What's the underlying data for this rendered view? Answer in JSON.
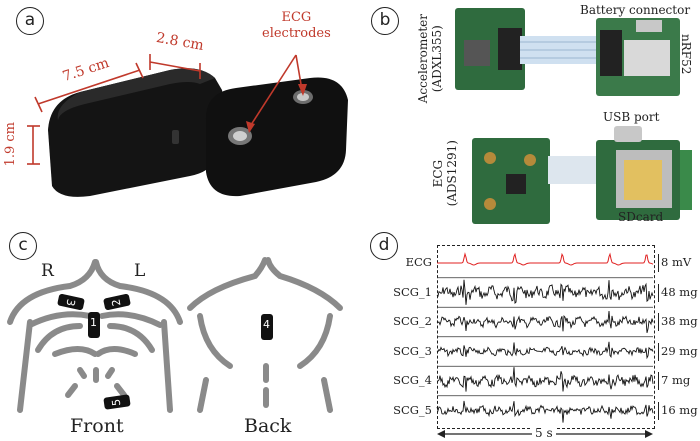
{
  "panels": {
    "a": "a",
    "b": "b",
    "c": "c",
    "d": "d"
  },
  "panel_a": {
    "ecg_electrodes": "ECG\nelectrodes",
    "dim_length": "7.5 cm",
    "dim_width": "2.8 cm",
    "dim_height": "1.9 cm",
    "accent_color": "#c0392b"
  },
  "panel_b": {
    "accelerometer": "Accelerometer\n(ADXL355)",
    "battery_connector": "Battery connector",
    "nrf52": "nRF52",
    "usb_port": "USB port",
    "ecg_chip": "ECG\n(ADS1291)",
    "sdcard": "SDcard"
  },
  "panel_c": {
    "right": "R",
    "left": "L",
    "front": "Front",
    "back": "Back",
    "positions": [
      "1",
      "2",
      "3",
      "4",
      "5"
    ]
  },
  "panel_d": {
    "signals": [
      {
        "name": "ECG",
        "scale": "8 mV",
        "color": "#e02020"
      },
      {
        "name": "SCG_1",
        "scale": "48 mg",
        "color": "#111111"
      },
      {
        "name": "SCG_2",
        "scale": "38 mg",
        "color": "#111111"
      },
      {
        "name": "SCG_3",
        "scale": "29 mg",
        "color": "#111111"
      },
      {
        "name": "SCG_4",
        "scale": "7 mg",
        "color": "#111111"
      },
      {
        "name": "SCG_5",
        "scale": "16 mg",
        "color": "#111111"
      }
    ],
    "time_span": "5 s"
  }
}
